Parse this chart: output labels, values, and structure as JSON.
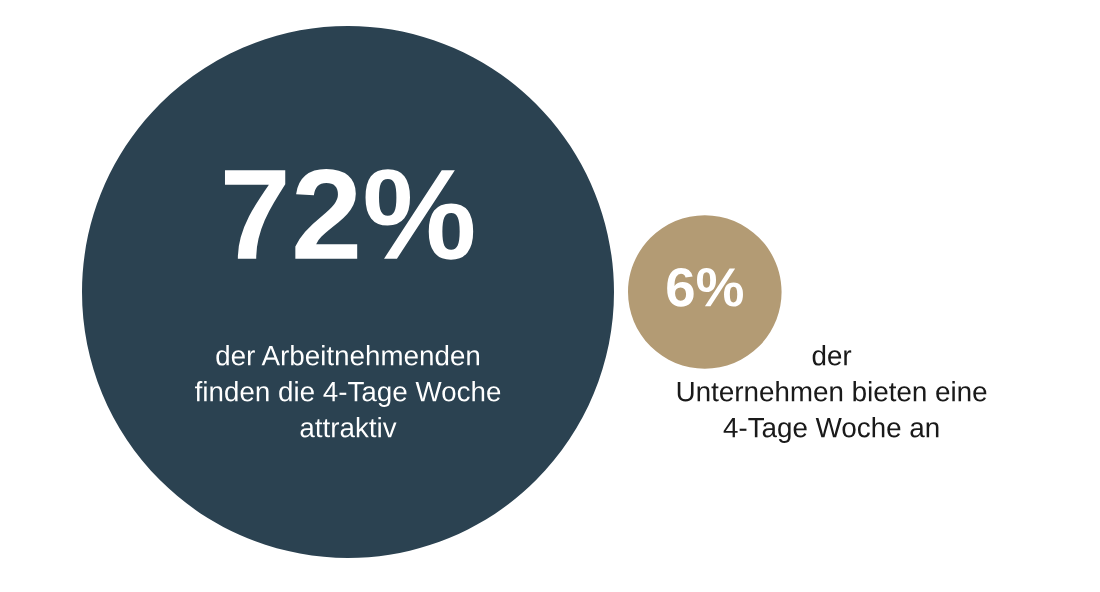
{
  "chart_data": {
    "type": "other",
    "categories": [
      "der Arbeitnehmenden\nfinden die 4-Tage Woche\nattraktiv",
      "der\nUnternehmen bieten eine\n4-Tage Woche an"
    ],
    "values": [
      72,
      6
    ],
    "value_labels": [
      "72%",
      "6%"
    ],
    "colors": [
      "#2b4251",
      "#b39b74"
    ]
  }
}
